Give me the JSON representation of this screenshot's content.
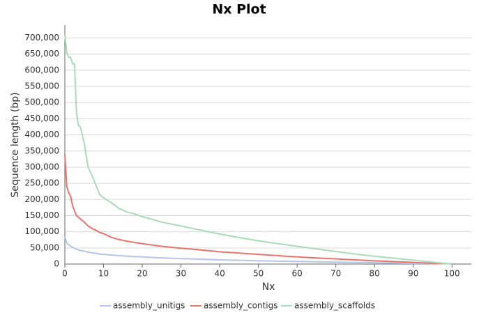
{
  "chart_data": {
    "type": "line",
    "title": "Nx Plot",
    "x_label": "Nx",
    "y_label": "Sequence length (bp)",
    "x": [
      0,
      0.5,
      1,
      1.5,
      2,
      2.5,
      3,
      3.5,
      4,
      5,
      6,
      7,
      8,
      9,
      10,
      12,
      14,
      16,
      18,
      20,
      25,
      30,
      35,
      40,
      45,
      50,
      55,
      60,
      65,
      70,
      75,
      80,
      85,
      90,
      95,
      99,
      100
    ],
    "series": [
      {
        "name": "assembly_unitigs",
        "color": "#b3c6e8",
        "values": [
          85000,
          65000,
          60000,
          55000,
          52000,
          49000,
          46000,
          44000,
          42000,
          40000,
          37000,
          35000,
          33000,
          31000,
          30000,
          28000,
          26000,
          24500,
          23000,
          22000,
          19000,
          17000,
          15000,
          13000,
          11500,
          10000,
          9000,
          8000,
          7000,
          6000,
          5000,
          4000,
          3000,
          2000,
          1500,
          1000,
          500
        ]
      },
      {
        "name": "assembly_contigs",
        "color": "#e8736b",
        "values": [
          340000,
          240000,
          220000,
          210000,
          180000,
          165000,
          150000,
          145000,
          140000,
          130000,
          118000,
          110000,
          105000,
          98000,
          94000,
          83000,
          76000,
          71000,
          67000,
          63000,
          55000,
          49000,
          44000,
          38000,
          34000,
          30000,
          26000,
          22000,
          19000,
          16000,
          13000,
          10000,
          7500,
          5000,
          2500,
          1000,
          500
        ]
      },
      {
        "name": "assembly_scaffolds",
        "color": "#a8dcb8",
        "values": [
          710000,
          655000,
          640000,
          640000,
          620000,
          620000,
          470000,
          430000,
          425000,
          375000,
          300000,
          275000,
          245000,
          215000,
          205000,
          190000,
          172000,
          162000,
          155000,
          147000,
          130000,
          118000,
          105000,
          93000,
          82000,
          72000,
          63000,
          55000,
          47000,
          39000,
          31000,
          24000,
          18000,
          12000,
          6000,
          1000,
          500
        ]
      }
    ],
    "xlim": [
      0,
      105
    ],
    "ylim": [
      0,
      740000
    ],
    "xticks": [
      0,
      10,
      20,
      30,
      40,
      50,
      60,
      70,
      80,
      90,
      100
    ],
    "yticks": [
      0,
      {
        "value": 50000,
        "label": "50,000"
      },
      {
        "value": 100000,
        "label": "100,000"
      },
      {
        "value": 150000,
        "label": "150,000"
      },
      {
        "value": 200000,
        "label": "200,000"
      },
      {
        "value": 250000,
        "label": "250,000"
      },
      {
        "value": 300000,
        "label": "300,000"
      },
      {
        "value": 350000,
        "label": "350,000"
      },
      {
        "value": 400000,
        "label": "400,000"
      },
      {
        "value": 450000,
        "label": "450,000"
      },
      {
        "value": 500000,
        "label": "500,000"
      },
      {
        "value": 550000,
        "label": "550,000"
      },
      {
        "value": 600000,
        "label": "600,000"
      },
      {
        "value": 650000,
        "label": "650,000"
      },
      {
        "value": 700000,
        "label": "700,000"
      }
    ],
    "grid": true,
    "legend": "bottom"
  }
}
